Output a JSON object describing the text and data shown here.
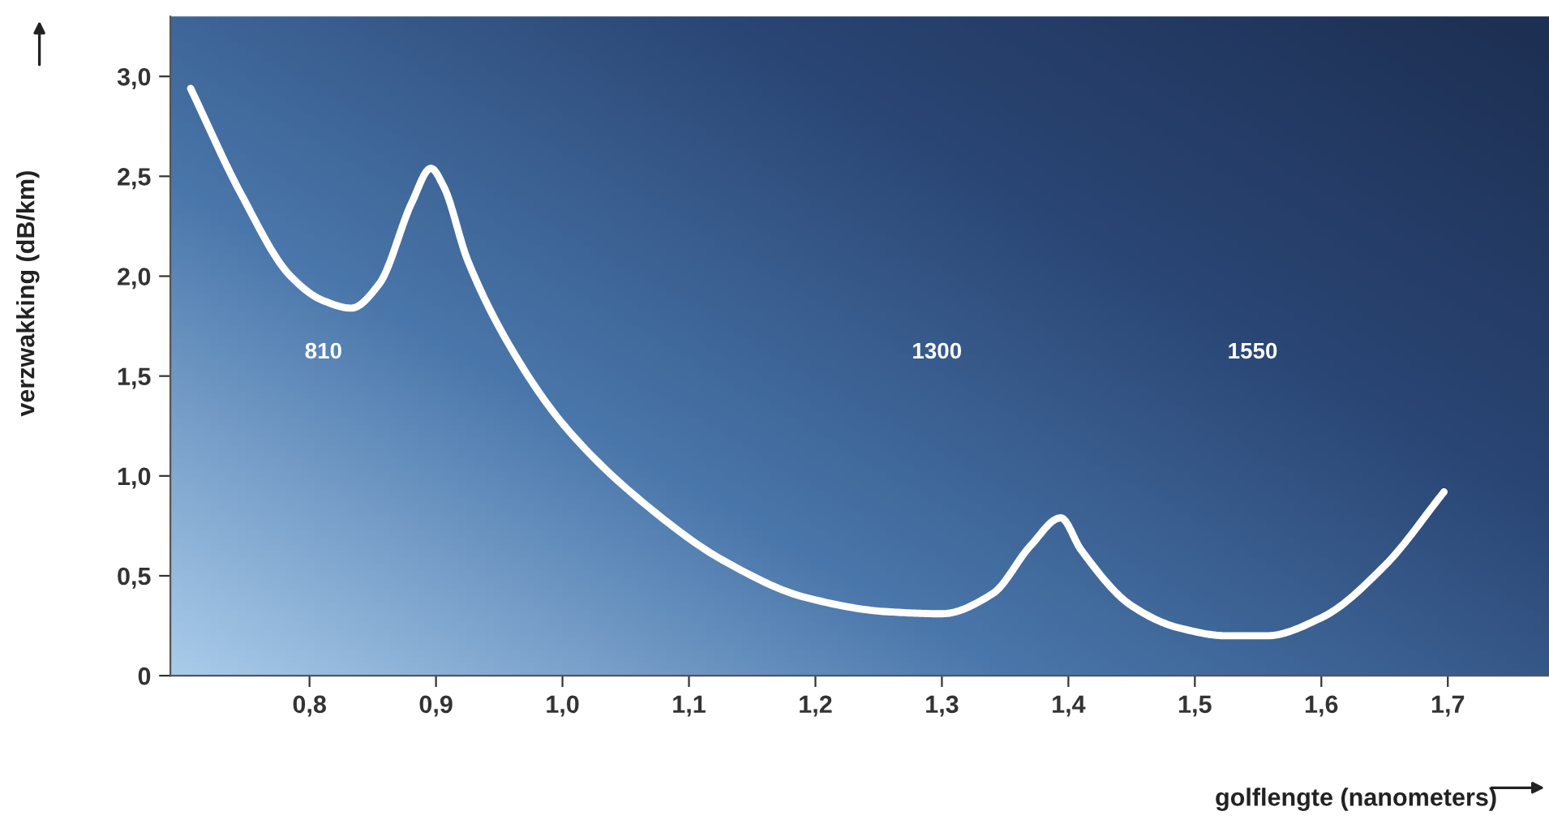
{
  "chart_data": {
    "type": "line",
    "xlabel": "golflengte (nanometers)",
    "ylabel": "verzwakking (dB/km)",
    "x": [
      0.706,
      0.746,
      0.785,
      0.81,
      0.833,
      0.855,
      0.881,
      0.896,
      0.906,
      0.925,
      0.964,
      1.003,
      1.065,
      1.129,
      1.193,
      1.257,
      1.3,
      1.34,
      1.37,
      1.394,
      1.41,
      1.45,
      1.487,
      1.525,
      1.557,
      1.6,
      1.65,
      1.697
    ],
    "series": [
      {
        "color": "#ffffff",
        "values": [
          2.94,
          2.41,
          2.0,
          1.88,
          1.84,
          1.96,
          2.37,
          2.54,
          2.45,
          2.08,
          1.59,
          1.24,
          0.86,
          0.57,
          0.39,
          0.32,
          0.31,
          0.41,
          0.65,
          0.79,
          0.63,
          0.35,
          0.24,
          0.2,
          0.2,
          0.29,
          0.55,
          0.92
        ]
      }
    ],
    "xlim": [
      0.69,
      1.78
    ],
    "ylim": [
      0,
      3.3
    ],
    "xticks": [
      {
        "value": 0.8,
        "label": "0,8"
      },
      {
        "value": 0.9,
        "label": "0,9"
      },
      {
        "value": 1.0,
        "label": "1,0"
      },
      {
        "value": 1.1,
        "label": "1,1"
      },
      {
        "value": 1.2,
        "label": "1,2"
      },
      {
        "value": 1.3,
        "label": "1,3"
      },
      {
        "value": 1.4,
        "label": "1,4"
      },
      {
        "value": 1.5,
        "label": "1,5"
      },
      {
        "value": 1.6,
        "label": "1,6"
      },
      {
        "value": 1.7,
        "label": "1,7"
      }
    ],
    "yticks": [
      0,
      {
        "value": 0.5,
        "label": "0,5"
      },
      {
        "value": 1.0,
        "label": "1,0"
      },
      {
        "value": 1.5,
        "label": "1,5"
      },
      {
        "value": 2.0,
        "label": "2,0"
      },
      {
        "value": 2.5,
        "label": "2,5"
      },
      {
        "value": 3.0,
        "label": "3,0"
      }
    ],
    "annotations": [
      "810",
      "1300",
      "1550"
    ],
    "grid": false,
    "marker": "none",
    "line_style": "solid"
  }
}
